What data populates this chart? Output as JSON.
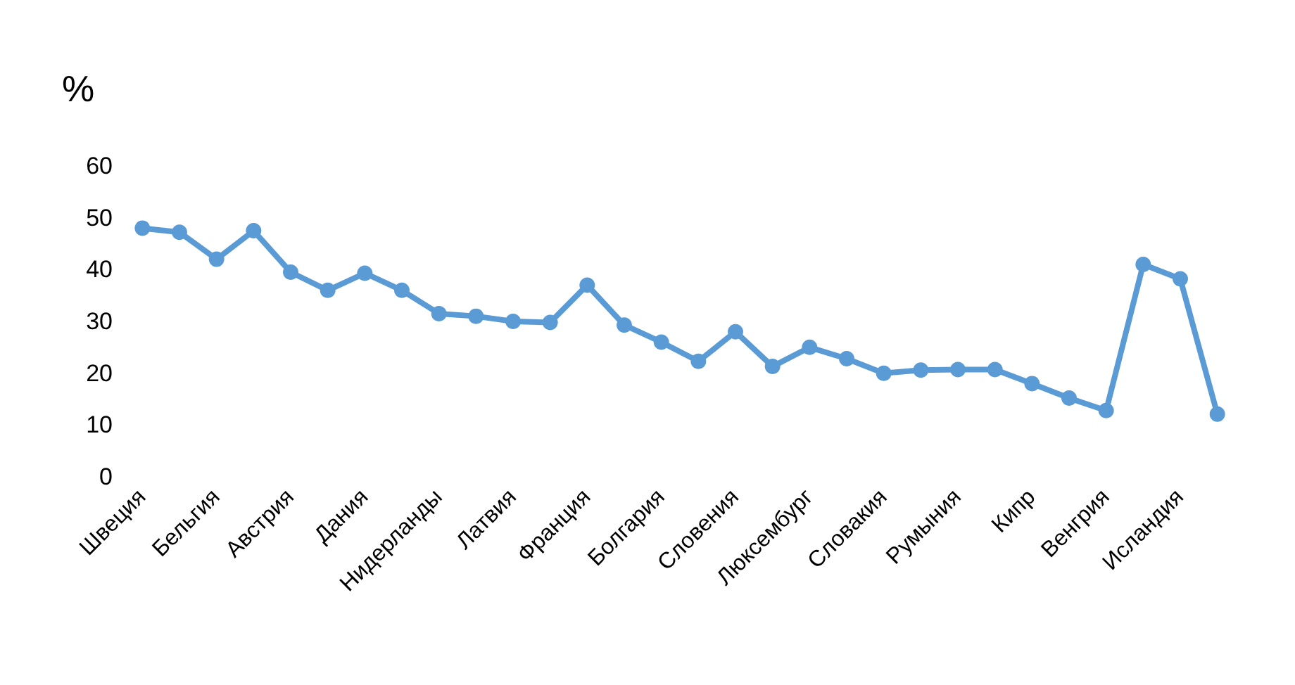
{
  "chart_data": {
    "type": "line",
    "ylabel": "%",
    "categories": [
      "Швеция",
      null,
      "Бельгия",
      null,
      "Австрия",
      null,
      "Дания",
      null,
      "Нидерланды",
      null,
      "Латвия",
      null,
      "Франция",
      null,
      "Болгария",
      null,
      "Словения",
      null,
      "Люксембург",
      null,
      "Словакия",
      null,
      "Румыния",
      null,
      "Кипр",
      null,
      "Венгрия",
      null,
      "Исландия",
      null
    ],
    "series": [
      {
        "color": "#5b9bd5",
        "values": [
          48,
          47.2,
          42,
          47.5,
          39.5,
          36,
          39.3,
          36,
          31.5,
          31,
          30,
          29.8,
          37,
          29.3,
          26,
          22.3,
          28,
          21.3,
          25,
          22.8,
          20,
          20.6,
          20.7,
          20.7,
          18,
          15.2,
          12.8,
          41,
          38.2,
          12.1
        ]
      }
    ],
    "ylim": [
      0,
      60
    ],
    "yticks": [
      0,
      10,
      20,
      30,
      40,
      50,
      60
    ],
    "grid": false,
    "marker": "circle",
    "line_style": "solid"
  }
}
